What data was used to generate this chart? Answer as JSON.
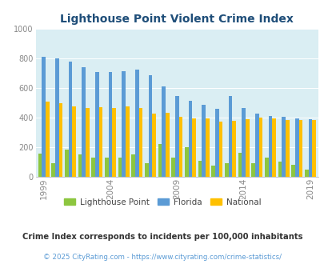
{
  "title": "Lighthouse Point Violent Crime Index",
  "years": [
    1999,
    2000,
    2001,
    2002,
    2003,
    2004,
    2005,
    2006,
    2007,
    2008,
    2009,
    2010,
    2011,
    2012,
    2013,
    2014,
    2015,
    2016,
    2017,
    2018,
    2019
  ],
  "lighthouse_point": [
    155,
    95,
    185,
    150,
    130,
    130,
    130,
    150,
    95,
    220,
    130,
    200,
    110,
    75,
    95,
    165,
    95,
    130,
    105,
    80,
    50
  ],
  "florida": [
    810,
    800,
    780,
    740,
    710,
    710,
    715,
    725,
    690,
    610,
    545,
    515,
    490,
    460,
    545,
    465,
    430,
    410,
    405,
    395,
    390
  ],
  "national": [
    510,
    500,
    475,
    465,
    470,
    465,
    475,
    465,
    430,
    435,
    405,
    395,
    395,
    375,
    380,
    390,
    400,
    395,
    385,
    385,
    385
  ],
  "ylim": [
    0,
    1000
  ],
  "yticks": [
    0,
    200,
    400,
    600,
    800,
    1000
  ],
  "xtick_years": [
    1999,
    2004,
    2009,
    2014,
    2019
  ],
  "color_lhp": "#8dc63f",
  "color_fl": "#5b9bd5",
  "color_nat": "#ffc000",
  "bg_color": "#daeef3",
  "title_color": "#1f4e79",
  "legend_labels": [
    "Lighthouse Point",
    "Florida",
    "National"
  ],
  "subtitle": "Crime Index corresponds to incidents per 100,000 inhabitants",
  "footer": "© 2025 CityRating.com - https://www.cityrating.com/crime-statistics/",
  "bar_width": 0.28,
  "subtitle_color": "#333333",
  "footer_color": "#5b9bd5",
  "tick_color": "#888888",
  "grid_color": "#ffffff"
}
